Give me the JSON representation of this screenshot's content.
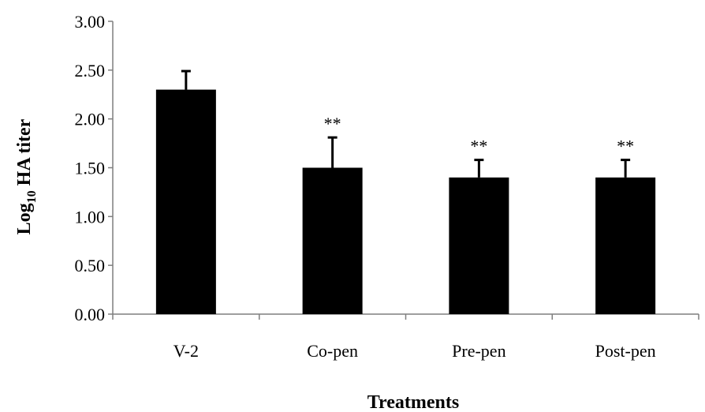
{
  "chart_data": {
    "type": "bar",
    "categories": [
      "V-2",
      "Co-pen",
      "Pre-pen",
      "Post-pen"
    ],
    "values": [
      2.3,
      1.5,
      1.4,
      1.4
    ],
    "errors": [
      0.19,
      0.31,
      0.18,
      0.18
    ],
    "annotations": [
      "",
      "**",
      "**",
      "**"
    ],
    "xlabel": "Treatments",
    "ylabel": {
      "base": "Log",
      "subscript": "10",
      "rest": " HA titer"
    },
    "ylim": [
      0,
      3.0
    ],
    "yticks": [
      "0.00",
      "0.50",
      "1.00",
      "1.50",
      "2.00",
      "2.50",
      "3.00"
    ],
    "grid": false,
    "legend": "none",
    "colors": {
      "bar": "#000000",
      "axis": "#7f7f7f",
      "text": "#000000"
    }
  }
}
